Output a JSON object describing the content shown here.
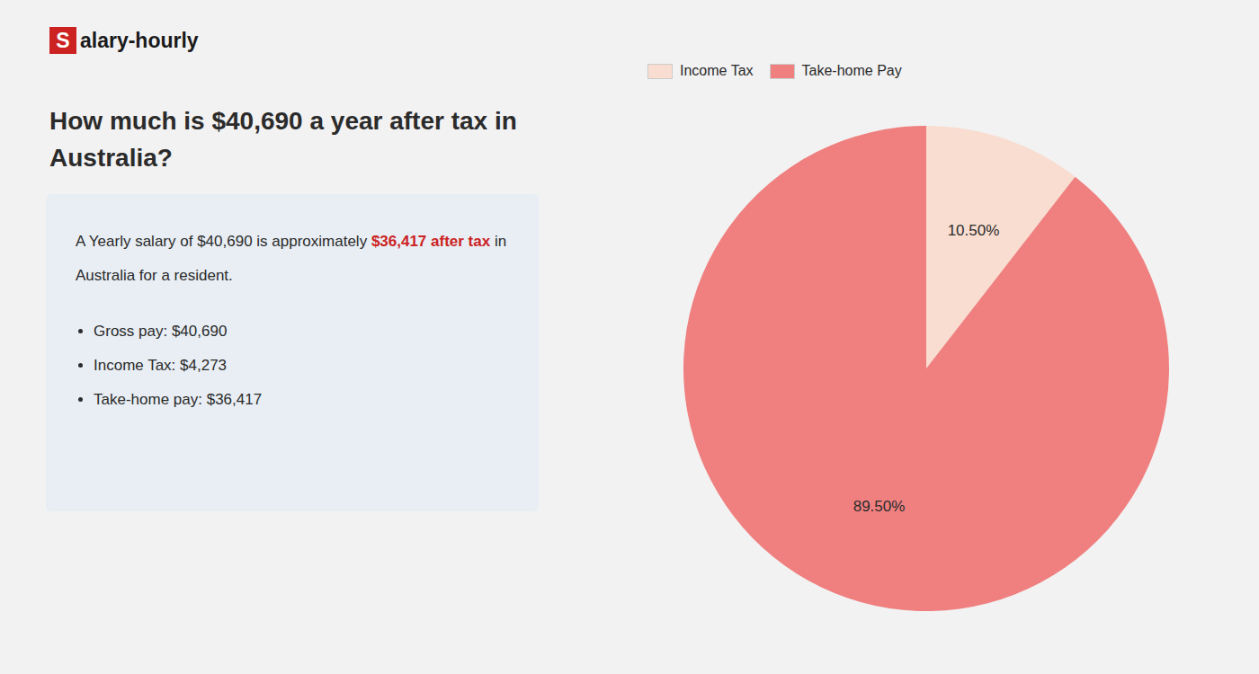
{
  "chart_data": {
    "type": "pie",
    "title": "How much is $40,690 a year after tax in\nAustralia?",
    "categories": [
      "Income Tax",
      "Take-home Pay"
    ],
    "values": [
      10.5,
      89.5
    ],
    "value_labels": [
      "10.50%",
      "89.50%"
    ],
    "colors": [
      "#f9ddd0",
      "#f08080"
    ],
    "data_labels": true,
    "legend": "top",
    "annotations": [
      {
        "text": "S",
        "color": "#cc2222"
      },
      {
        "text": "alary-hourly"
      },
      {
        "text": "A Yearly salary of $40,690 is approximately"
      },
      {
        "text": "$36,417 after tax",
        "color": "#cc2222"
      },
      {
        "text": "in"
      },
      {
        "text": "Australia for a resident."
      },
      {
        "text": "Gross pay: $40,690"
      },
      {
        "text": "Income Tax: $4,273"
      },
      {
        "text": "Take-home pay: $36,417"
      }
    ]
  }
}
